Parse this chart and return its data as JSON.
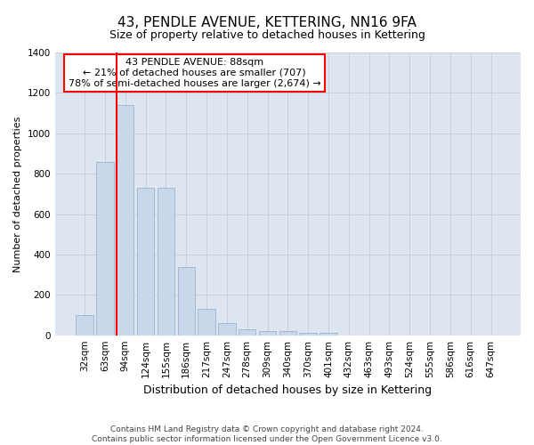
{
  "title": "43, PENDLE AVENUE, KETTERING, NN16 9FA",
  "subtitle": "Size of property relative to detached houses in Kettering",
  "xlabel": "Distribution of detached houses by size in Kettering",
  "ylabel": "Number of detached properties",
  "bar_color": "#c8d8ea",
  "bar_edge_color": "#9ab4cc",
  "grid_color": "#c8d0dc",
  "bg_color": "#dde6f0",
  "categories": [
    "32sqm",
    "63sqm",
    "94sqm",
    "124sqm",
    "155sqm",
    "186sqm",
    "217sqm",
    "247sqm",
    "278sqm",
    "309sqm",
    "340sqm",
    "370sqm",
    "401sqm",
    "432sqm",
    "463sqm",
    "493sqm",
    "524sqm",
    "555sqm",
    "586sqm",
    "616sqm",
    "647sqm"
  ],
  "values": [
    100,
    860,
    1140,
    730,
    730,
    340,
    130,
    60,
    30,
    20,
    20,
    10,
    10,
    0,
    0,
    0,
    0,
    0,
    0,
    0,
    0
  ],
  "red_line_index": 2,
  "annotation_text": "43 PENDLE AVENUE: 88sqm\n← 21% of detached houses are smaller (707)\n78% of semi-detached houses are larger (2,674) →",
  "annotation_box_facecolor": "white",
  "annotation_box_edgecolor": "red",
  "red_line_color": "red",
  "footer_text": "Contains HM Land Registry data © Crown copyright and database right 2024.\nContains public sector information licensed under the Open Government Licence v3.0.",
  "ylim": [
    0,
    1400
  ],
  "yticks": [
    0,
    200,
    400,
    600,
    800,
    1000,
    1200,
    1400
  ],
  "title_fontsize": 11,
  "subtitle_fontsize": 9,
  "ylabel_fontsize": 8,
  "xlabel_fontsize": 9,
  "tick_fontsize": 7.5,
  "annotation_fontsize": 8,
  "footer_fontsize": 6.5
}
